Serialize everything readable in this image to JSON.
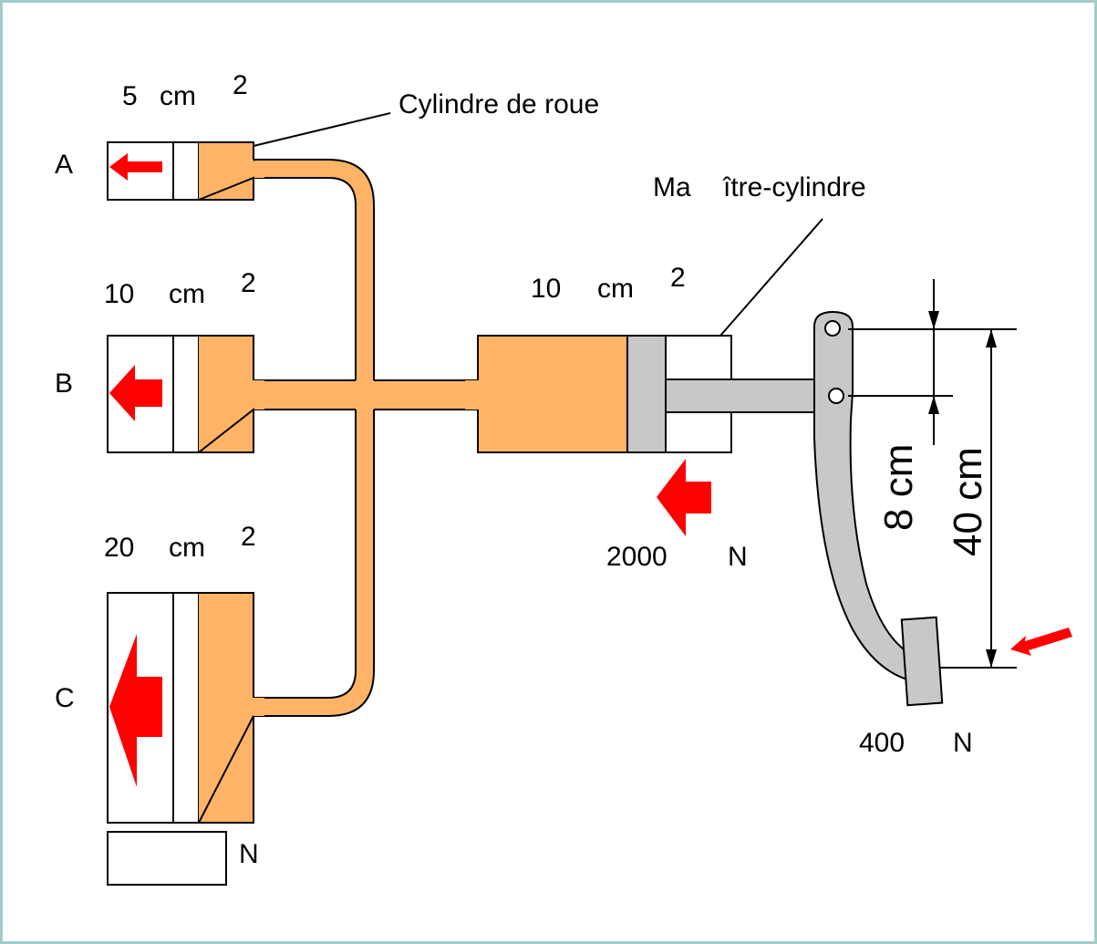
{
  "labels": {
    "a_area_value": "5",
    "a_area_unit": "cm",
    "a_area_exp": "2",
    "b_area_value": "10",
    "b_area_unit": "cm",
    "b_area_exp": "2",
    "c_area_value": "20",
    "c_area_unit": "cm",
    "c_area_exp": "2",
    "master_area_value": "10",
    "master_area_unit": "cm",
    "master_area_exp": "2",
    "wheel_cylinder": "Cylindre de roue",
    "master_cylinder_part1": "Ma",
    "master_cylinder_part2": "ître-cylindre",
    "cyl_a": "A",
    "cyl_b": "B",
    "cyl_c": "C",
    "master_force_value": "2000",
    "master_force_unit": "N",
    "pedal_force_value": "400",
    "pedal_force_unit": "N",
    "answer_unit": "N",
    "dim_short": "8 cm",
    "dim_long": "40 cm"
  },
  "colors": {
    "fluid": "#FFB366",
    "metal": "#C8C8C8",
    "arrow": "#FF0000",
    "frame": "#9FCBCB"
  }
}
